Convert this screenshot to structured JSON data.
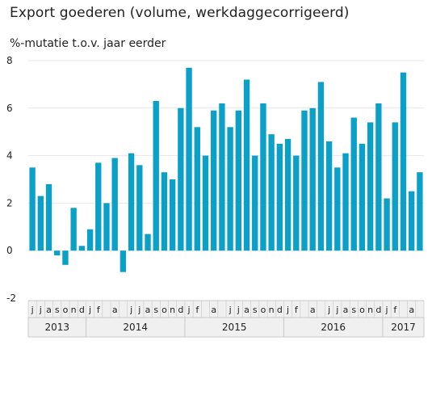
{
  "title": "Export goederen (volume, werkdaggecorrigeerd)",
  "subtitle": "%-mutatie t.o.v. jaar eerder",
  "colors": {
    "bar": "#0aa0c8",
    "grid": "#e6e6e6",
    "axis_band": "#f0f0f0",
    "axis_border": "#c8c8c8",
    "text": "#222222"
  },
  "chart_data": {
    "type": "bar",
    "title": "Export goederen (volume, werkdaggecorrigeerd)",
    "ylabel": "%-mutatie t.o.v. jaar eerder",
    "xlabel": "",
    "ylim": [
      -2,
      8
    ],
    "yticks": [
      -2,
      0,
      2,
      4,
      6,
      8
    ],
    "ytick_labels": [
      "-2",
      "0",
      "2",
      "4",
      "6",
      "8"
    ],
    "grid": true,
    "categories": [
      "2013-06",
      "2013-07",
      "2013-08",
      "2013-09",
      "2013-10",
      "2013-11",
      "2013-12",
      "2014-01",
      "2014-02",
      "2014-03",
      "2014-04",
      "2014-05",
      "2014-06",
      "2014-07",
      "2014-08",
      "2014-09",
      "2014-10",
      "2014-11",
      "2014-12",
      "2015-01",
      "2015-02",
      "2015-03",
      "2015-04",
      "2015-05",
      "2015-06",
      "2015-07",
      "2015-08",
      "2015-09",
      "2015-10",
      "2015-11",
      "2015-12",
      "2016-01",
      "2016-02",
      "2016-03",
      "2016-04",
      "2016-05",
      "2016-06",
      "2016-07",
      "2016-08",
      "2016-09",
      "2016-10",
      "2016-11",
      "2016-12",
      "2017-01",
      "2017-02",
      "2017-03",
      "2017-04",
      "2017-05"
    ],
    "month_labels": [
      "j",
      "j",
      "a",
      "s",
      "o",
      "n",
      "d",
      "j",
      "f",
      "",
      "a",
      "",
      "j",
      "j",
      "a",
      "s",
      "o",
      "n",
      "d",
      "j",
      "f",
      "",
      "a",
      "",
      "j",
      "j",
      "a",
      "s",
      "o",
      "n",
      "d",
      "j",
      "f",
      "",
      "a",
      "",
      "j",
      "j",
      "a",
      "s",
      "o",
      "n",
      "d",
      "j",
      "f",
      "",
      "a",
      ""
    ],
    "years": [
      {
        "label": "2013",
        "count": 7
      },
      {
        "label": "2014",
        "count": 12
      },
      {
        "label": "2015",
        "count": 12
      },
      {
        "label": "2016",
        "count": 12
      },
      {
        "label": "2017",
        "count": 5
      }
    ],
    "values": [
      3.5,
      2.3,
      2.8,
      -0.2,
      -0.6,
      1.8,
      0.2,
      0.9,
      3.7,
      2.0,
      3.9,
      -0.9,
      4.1,
      3.6,
      0.7,
      6.3,
      3.3,
      3.0,
      6.0,
      7.7,
      5.2,
      4.0,
      5.9,
      6.2,
      5.2,
      5.9,
      7.2,
      4.0,
      6.2,
      4.9,
      4.5,
      4.7,
      4.0,
      5.9,
      6.0,
      7.1,
      4.6,
      3.5,
      4.1,
      5.6,
      4.5,
      5.4,
      6.2,
      2.2,
      5.4,
      7.5,
      2.5,
      3.3
    ]
  }
}
